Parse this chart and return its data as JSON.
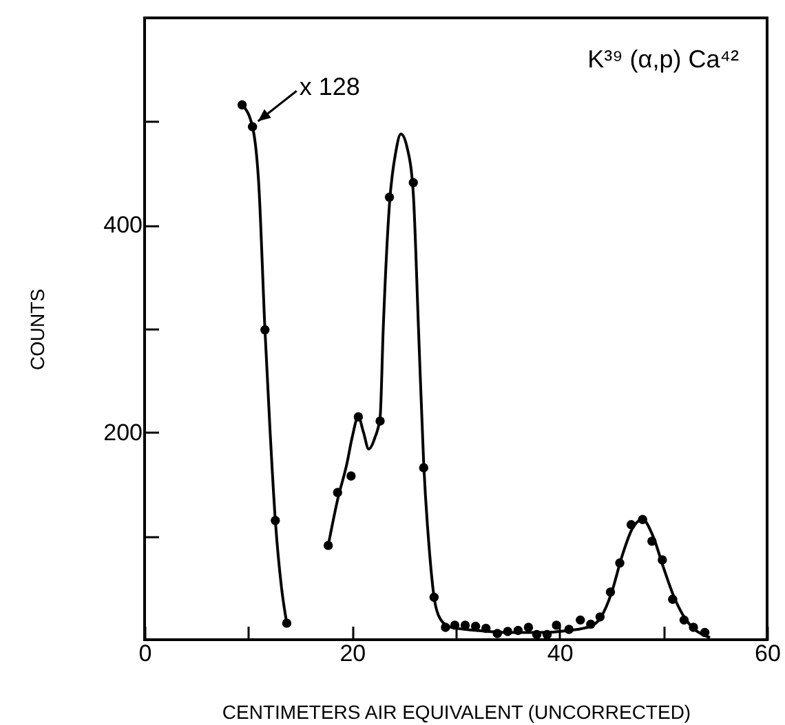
{
  "chart_data": {
    "type": "scatter",
    "title": "K³⁹ (α,p) Ca⁴²",
    "xlabel": "CENTIMETERS AIR EQUIVALENT (UNCORRECTED)",
    "ylabel": "COUNTS",
    "xlim": [
      0,
      60
    ],
    "xticks": [
      0,
      {
        "value": 10,
        "label": null
      },
      20,
      {
        "value": 30,
        "label": null
      },
      40,
      {
        "value": 50,
        "label": null
      },
      60
    ],
    "ylim": [
      0,
      600
    ],
    "yticks": [
      {
        "value": 100,
        "label": null
      },
      200,
      {
        "value": 300,
        "label": null
      },
      400,
      {
        "value": 500,
        "label": null
      }
    ],
    "grid": false,
    "marker": "circle",
    "annotations": [
      {
        "text": "x 128",
        "x": 10.4,
        "y": 495
      }
    ],
    "series": [
      {
        "color": "#000000",
        "x": [
          9.4,
          10.4,
          11.6,
          12.6,
          13.7
        ],
        "values": [
          516,
          495,
          299,
          115,
          16
        ]
      },
      {
        "color": "#000000",
        "x": [
          17.7,
          18.6,
          19.9,
          20.6,
          22.7,
          23.6,
          25.9,
          26.9,
          27.9,
          29.0,
          29.9,
          30.9,
          31.9,
          32.9,
          34.0,
          35.0,
          36.0,
          37.0,
          37.8,
          38.8,
          39.7,
          40.9,
          42.0,
          43.0,
          43.9,
          44.9,
          45.8,
          46.9,
          48.0,
          48.9,
          49.9,
          50.9,
          52.0,
          52.9,
          54.0
        ],
        "values": [
          91,
          142,
          158,
          215,
          211,
          427,
          441,
          166,
          41,
          12,
          14,
          14,
          13,
          11,
          6,
          8,
          9,
          12,
          5,
          5,
          14,
          10,
          19,
          15,
          22,
          46,
          74,
          111,
          116,
          95,
          77,
          39,
          19,
          12,
          7
        ]
      },
      {
        "type": "line",
        "marker": "none",
        "color": "#000000",
        "x": [
          9.4,
          10.4,
          11.0,
          11.6,
          12.1,
          12.6,
          13.2,
          13.7
        ],
        "values": [
          516,
          495,
          440,
          299,
          200,
          115,
          50,
          16
        ]
      },
      {
        "type": "line",
        "marker": "none",
        "color": "#000000",
        "x": [
          17.7,
          18.6,
          19.5,
          20.0,
          20.6,
          21.1,
          21.6,
          22.2,
          22.7,
          23.0,
          23.6,
          24.2,
          24.7,
          25.3,
          25.9,
          26.4,
          26.9,
          27.5,
          27.9,
          28.5,
          29.5,
          32,
          35,
          38,
          41,
          43,
          44,
          45,
          46,
          47,
          48,
          49,
          50,
          51,
          52,
          53,
          54,
          54.5
        ],
        "values": [
          91,
          135,
          170,
          195,
          215,
          200,
          184,
          195,
          215,
          300,
          420,
          470,
          488,
          475,
          430,
          300,
          170,
          80,
          41,
          20,
          12,
          9,
          7,
          7,
          9,
          13,
          22,
          45,
          80,
          107,
          116,
          100,
          70,
          42,
          22,
          10,
          4,
          2
        ]
      }
    ]
  }
}
